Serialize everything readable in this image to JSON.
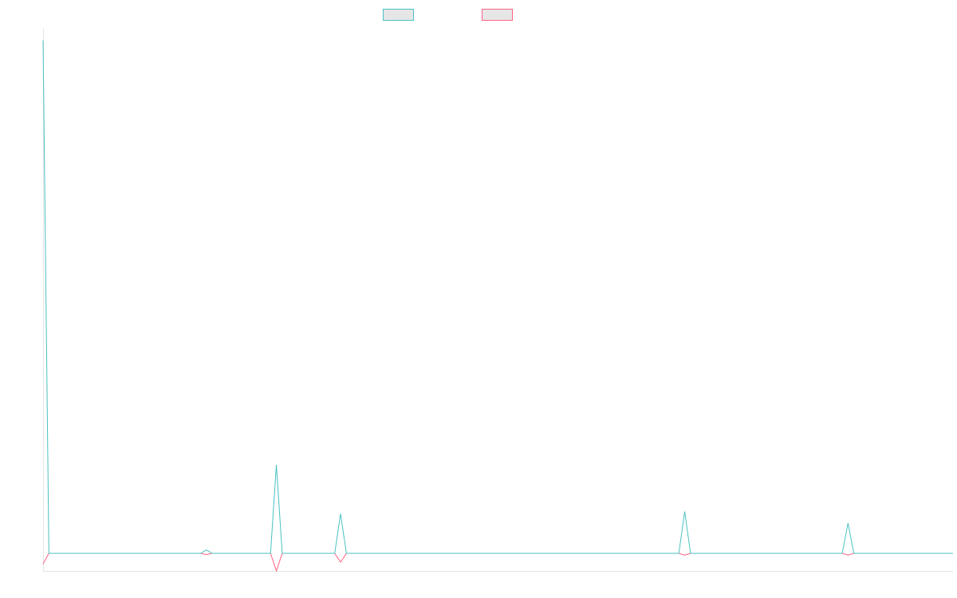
{
  "chart_data": {
    "type": "line",
    "title": "",
    "xlabel": "",
    "ylabel": "",
    "grid": false,
    "legend_position": "top-center",
    "ylim": [
      -30,
      900
    ],
    "series": [
      {
        "name": "",
        "color": "#4bc0c0",
        "points": [
          [
            0,
            880
          ],
          [
            1,
            0
          ],
          [
            2,
            0
          ],
          [
            3,
            0
          ],
          [
            4,
            0
          ],
          [
            5,
            0
          ],
          [
            6,
            0
          ],
          [
            7,
            0
          ],
          [
            8,
            0
          ],
          [
            9,
            0
          ],
          [
            10,
            0
          ],
          [
            11,
            0
          ],
          [
            12,
            0
          ],
          [
            13,
            0
          ],
          [
            14,
            0
          ],
          [
            15,
            0
          ],
          [
            16,
            0
          ],
          [
            17,
            0
          ],
          [
            18,
            0
          ],
          [
            19,
            0
          ],
          [
            20,
            0
          ],
          [
            21,
            0
          ],
          [
            22,
            0
          ],
          [
            23,
            0
          ],
          [
            24,
            0
          ],
          [
            25,
            0
          ],
          [
            26,
            0
          ],
          [
            27,
            0
          ],
          [
            28,
            6
          ],
          [
            29,
            0
          ],
          [
            30,
            0
          ],
          [
            31,
            0
          ],
          [
            32,
            0
          ],
          [
            33,
            0
          ],
          [
            34,
            0
          ],
          [
            35,
            0
          ],
          [
            36,
            0
          ],
          [
            37,
            0
          ],
          [
            38,
            0
          ],
          [
            39,
            0
          ],
          [
            40,
            152
          ],
          [
            41,
            0
          ],
          [
            42,
            0
          ],
          [
            43,
            0
          ],
          [
            44,
            0
          ],
          [
            45,
            0
          ],
          [
            46,
            0
          ],
          [
            47,
            0
          ],
          [
            48,
            0
          ],
          [
            49,
            0
          ],
          [
            50,
            0
          ],
          [
            51,
            68
          ],
          [
            52,
            0
          ],
          [
            53,
            0
          ],
          [
            54,
            0
          ],
          [
            55,
            0
          ],
          [
            56,
            0
          ],
          [
            57,
            0
          ],
          [
            58,
            0
          ],
          [
            59,
            0
          ],
          [
            60,
            0
          ],
          [
            61,
            0
          ],
          [
            62,
            0
          ],
          [
            63,
            0
          ],
          [
            64,
            0
          ],
          [
            65,
            0
          ],
          [
            66,
            0
          ],
          [
            67,
            0
          ],
          [
            68,
            0
          ],
          [
            69,
            0
          ],
          [
            70,
            0
          ],
          [
            71,
            0
          ],
          [
            72,
            0
          ],
          [
            73,
            0
          ],
          [
            74,
            0
          ],
          [
            75,
            0
          ],
          [
            76,
            0
          ],
          [
            77,
            0
          ],
          [
            78,
            0
          ],
          [
            79,
            0
          ],
          [
            80,
            0
          ],
          [
            81,
            0
          ],
          [
            82,
            0
          ],
          [
            83,
            0
          ],
          [
            84,
            0
          ],
          [
            85,
            0
          ],
          [
            86,
            0
          ],
          [
            87,
            0
          ],
          [
            88,
            0
          ],
          [
            89,
            0
          ],
          [
            90,
            0
          ],
          [
            91,
            0
          ],
          [
            92,
            0
          ],
          [
            93,
            0
          ],
          [
            94,
            0
          ],
          [
            95,
            0
          ],
          [
            96,
            0
          ],
          [
            97,
            0
          ],
          [
            98,
            0
          ],
          [
            99,
            0
          ],
          [
            100,
            0
          ],
          [
            101,
            0
          ],
          [
            102,
            0
          ],
          [
            103,
            0
          ],
          [
            104,
            0
          ],
          [
            105,
            0
          ],
          [
            106,
            0
          ],
          [
            107,
            0
          ],
          [
            108,
            0
          ],
          [
            109,
            0
          ],
          [
            110,
            72
          ],
          [
            111,
            0
          ],
          [
            112,
            0
          ],
          [
            113,
            0
          ],
          [
            114,
            0
          ],
          [
            115,
            0
          ],
          [
            116,
            0
          ],
          [
            117,
            0
          ],
          [
            118,
            0
          ],
          [
            119,
            0
          ],
          [
            120,
            0
          ],
          [
            121,
            0
          ],
          [
            122,
            0
          ],
          [
            123,
            0
          ],
          [
            124,
            0
          ],
          [
            125,
            0
          ],
          [
            126,
            0
          ],
          [
            127,
            0
          ],
          [
            128,
            0
          ],
          [
            129,
            0
          ],
          [
            130,
            0
          ],
          [
            131,
            0
          ],
          [
            132,
            0
          ],
          [
            133,
            0
          ],
          [
            134,
            0
          ],
          [
            135,
            0
          ],
          [
            136,
            0
          ],
          [
            137,
            0
          ],
          [
            138,
            52
          ],
          [
            139,
            0
          ],
          [
            140,
            0
          ],
          [
            141,
            0
          ],
          [
            142,
            0
          ],
          [
            143,
            0
          ],
          [
            144,
            0
          ],
          [
            145,
            0
          ],
          [
            146,
            0
          ],
          [
            147,
            0
          ],
          [
            148,
            0
          ],
          [
            149,
            0
          ],
          [
            150,
            0
          ],
          [
            151,
            0
          ],
          [
            152,
            0
          ],
          [
            153,
            0
          ],
          [
            154,
            0
          ],
          [
            155,
            0
          ],
          [
            156,
            0
          ]
        ]
      },
      {
        "name": "",
        "color": "#ff6384",
        "points": [
          [
            0,
            -18
          ],
          [
            1,
            0
          ],
          [
            2,
            0
          ],
          [
            3,
            0
          ],
          [
            4,
            0
          ],
          [
            5,
            0
          ],
          [
            6,
            0
          ],
          [
            7,
            0
          ],
          [
            8,
            0
          ],
          [
            9,
            0
          ],
          [
            10,
            0
          ],
          [
            11,
            0
          ],
          [
            12,
            0
          ],
          [
            13,
            0
          ],
          [
            14,
            0
          ],
          [
            15,
            0
          ],
          [
            16,
            0
          ],
          [
            17,
            0
          ],
          [
            18,
            0
          ],
          [
            19,
            0
          ],
          [
            20,
            0
          ],
          [
            21,
            0
          ],
          [
            22,
            0
          ],
          [
            23,
            0
          ],
          [
            24,
            0
          ],
          [
            25,
            0
          ],
          [
            26,
            0
          ],
          [
            27,
            0
          ],
          [
            28,
            -2
          ],
          [
            29,
            0
          ],
          [
            30,
            0
          ],
          [
            31,
            0
          ],
          [
            32,
            0
          ],
          [
            33,
            0
          ],
          [
            34,
            0
          ],
          [
            35,
            0
          ],
          [
            36,
            0
          ],
          [
            37,
            0
          ],
          [
            38,
            0
          ],
          [
            39,
            0
          ],
          [
            40,
            -30
          ],
          [
            41,
            0
          ],
          [
            42,
            0
          ],
          [
            43,
            0
          ],
          [
            44,
            0
          ],
          [
            45,
            0
          ],
          [
            46,
            0
          ],
          [
            47,
            0
          ],
          [
            48,
            0
          ],
          [
            49,
            0
          ],
          [
            50,
            0
          ],
          [
            51,
            -15
          ],
          [
            52,
            0
          ],
          [
            53,
            0
          ],
          [
            54,
            0
          ],
          [
            55,
            0
          ],
          [
            56,
            0
          ],
          [
            57,
            0
          ],
          [
            58,
            0
          ],
          [
            59,
            0
          ],
          [
            60,
            0
          ],
          [
            61,
            0
          ],
          [
            62,
            0
          ],
          [
            63,
            0
          ],
          [
            64,
            0
          ],
          [
            65,
            0
          ],
          [
            66,
            0
          ],
          [
            67,
            0
          ],
          [
            68,
            0
          ],
          [
            69,
            0
          ],
          [
            70,
            0
          ],
          [
            71,
            0
          ],
          [
            72,
            0
          ],
          [
            73,
            0
          ],
          [
            74,
            0
          ],
          [
            75,
            0
          ],
          [
            76,
            0
          ],
          [
            77,
            0
          ],
          [
            78,
            0
          ],
          [
            79,
            0
          ],
          [
            80,
            0
          ],
          [
            81,
            0
          ],
          [
            82,
            0
          ],
          [
            83,
            0
          ],
          [
            84,
            0
          ],
          [
            85,
            0
          ],
          [
            86,
            0
          ],
          [
            87,
            0
          ],
          [
            88,
            0
          ],
          [
            89,
            0
          ],
          [
            90,
            0
          ],
          [
            91,
            0
          ],
          [
            92,
            0
          ],
          [
            93,
            0
          ],
          [
            94,
            0
          ],
          [
            95,
            0
          ],
          [
            96,
            0
          ],
          [
            97,
            0
          ],
          [
            98,
            0
          ],
          [
            99,
            0
          ],
          [
            100,
            0
          ],
          [
            101,
            0
          ],
          [
            102,
            0
          ],
          [
            103,
            0
          ],
          [
            104,
            0
          ],
          [
            105,
            0
          ],
          [
            106,
            0
          ],
          [
            107,
            0
          ],
          [
            108,
            0
          ],
          [
            109,
            0
          ],
          [
            110,
            -3
          ],
          [
            111,
            0
          ],
          [
            112,
            0
          ],
          [
            113,
            0
          ],
          [
            114,
            0
          ],
          [
            115,
            0
          ],
          [
            116,
            0
          ],
          [
            117,
            0
          ],
          [
            118,
            0
          ],
          [
            119,
            0
          ],
          [
            120,
            0
          ],
          [
            121,
            0
          ],
          [
            122,
            0
          ],
          [
            123,
            0
          ],
          [
            124,
            0
          ],
          [
            125,
            0
          ],
          [
            126,
            0
          ],
          [
            127,
            0
          ],
          [
            128,
            0
          ],
          [
            129,
            0
          ],
          [
            130,
            0
          ],
          [
            131,
            0
          ],
          [
            132,
            0
          ],
          [
            133,
            0
          ],
          [
            134,
            0
          ],
          [
            135,
            0
          ],
          [
            136,
            0
          ],
          [
            137,
            0
          ],
          [
            138,
            -3
          ],
          [
            139,
            0
          ],
          [
            140,
            0
          ],
          [
            141,
            0
          ],
          [
            142,
            0
          ],
          [
            143,
            0
          ],
          [
            144,
            0
          ],
          [
            145,
            0
          ],
          [
            146,
            0
          ],
          [
            147,
            0
          ],
          [
            148,
            0
          ],
          [
            149,
            0
          ],
          [
            150,
            0
          ],
          [
            151,
            0
          ],
          [
            152,
            0
          ],
          [
            153,
            0
          ],
          [
            154,
            0
          ],
          [
            155,
            0
          ],
          [
            156,
            0
          ]
        ]
      }
    ]
  }
}
